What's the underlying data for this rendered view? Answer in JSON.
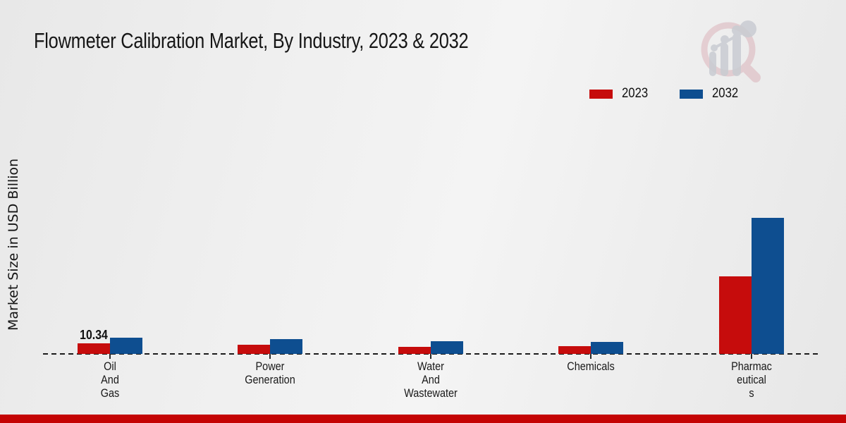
{
  "page": {
    "bottom_bar_color": "#c40404",
    "background_base": "#eeeeee"
  },
  "header": {
    "title": "Flowmeter Calibration Market, By Industry, 2023 & 2032"
  },
  "legend": {
    "items": [
      {
        "label": "2023",
        "color": "#c60c0c"
      },
      {
        "label": "2032",
        "color": "#0e4e90"
      }
    ]
  },
  "chart_data": {
    "type": "bar",
    "title": "Flowmeter Calibration Market, By Industry, 2023 & 2032",
    "xlabel": "",
    "ylabel": "Market Size in USD Billion",
    "categories": [
      "Oil And Gas",
      "Power Generation",
      "Water And Wastewater",
      "Chemicals",
      "Pharmaceuticals"
    ],
    "category_label_lines": [
      [
        "Oil",
        "And",
        "Gas"
      ],
      [
        "Power",
        "Generation"
      ],
      [
        "Water",
        "And",
        "Wastewater"
      ],
      [
        "Chemicals"
      ],
      [
        "Pharmac",
        "eutical",
        "s"
      ]
    ],
    "series": [
      {
        "name": "2023",
        "color": "#c60c0c",
        "values": [
          10.34,
          9.0,
          6.9,
          7.6,
          75.8
        ]
      },
      {
        "name": "2032",
        "color": "#0e4e90",
        "values": [
          15.9,
          14.5,
          12.4,
          11.7,
          133.0
        ]
      }
    ],
    "annotations": [
      {
        "category_index": 0,
        "series": "2023",
        "text": "10.34"
      }
    ],
    "ylim": [
      0,
      140
    ],
    "grid": false,
    "y_tick_labels_visible": false,
    "baseline_style": "dashed",
    "legend_position": "top-right"
  }
}
